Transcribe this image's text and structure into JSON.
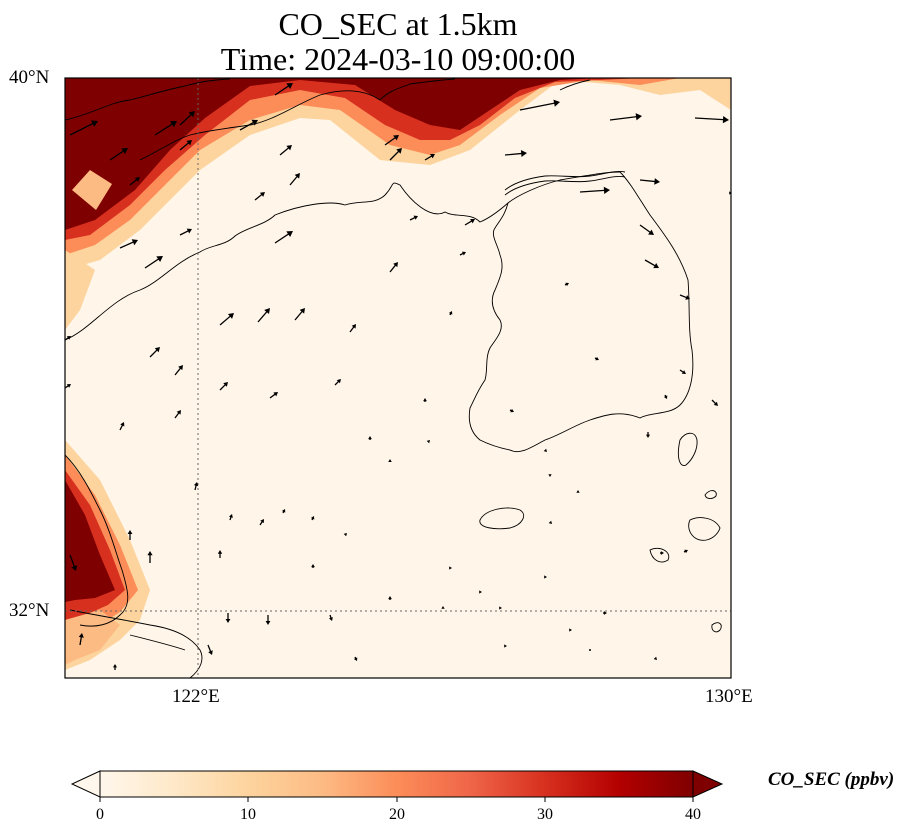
{
  "title": {
    "line1": "CO_SEC at 1.5km",
    "line2": "Time: 2024-03-10 09:00:00"
  },
  "map": {
    "lon_range": [
      121,
      130
    ],
    "lat_range": [
      31.1,
      40
    ],
    "lat_ticks": [
      {
        "value": 40,
        "label": "40°N"
      },
      {
        "value": 32,
        "label": "32°N"
      }
    ],
    "lon_ticks": [
      {
        "value": 122,
        "label": "122°E"
      },
      {
        "value": 130,
        "label": "130°E"
      }
    ],
    "gridlines": "dotted",
    "vectors": "wind arrows"
  },
  "colorbar": {
    "label": "CO_SEC (ppbv)",
    "min": 0,
    "max": 40,
    "ticks": [
      "0",
      "10",
      "20",
      "30",
      "40"
    ],
    "colormap": "OrRd",
    "colors": [
      "#fff7ec",
      "#fee8c8",
      "#fdd49e",
      "#fdbb84",
      "#fc8d59",
      "#ef6548",
      "#d7301f",
      "#b30000",
      "#7f0000"
    ],
    "extend": "both"
  }
}
